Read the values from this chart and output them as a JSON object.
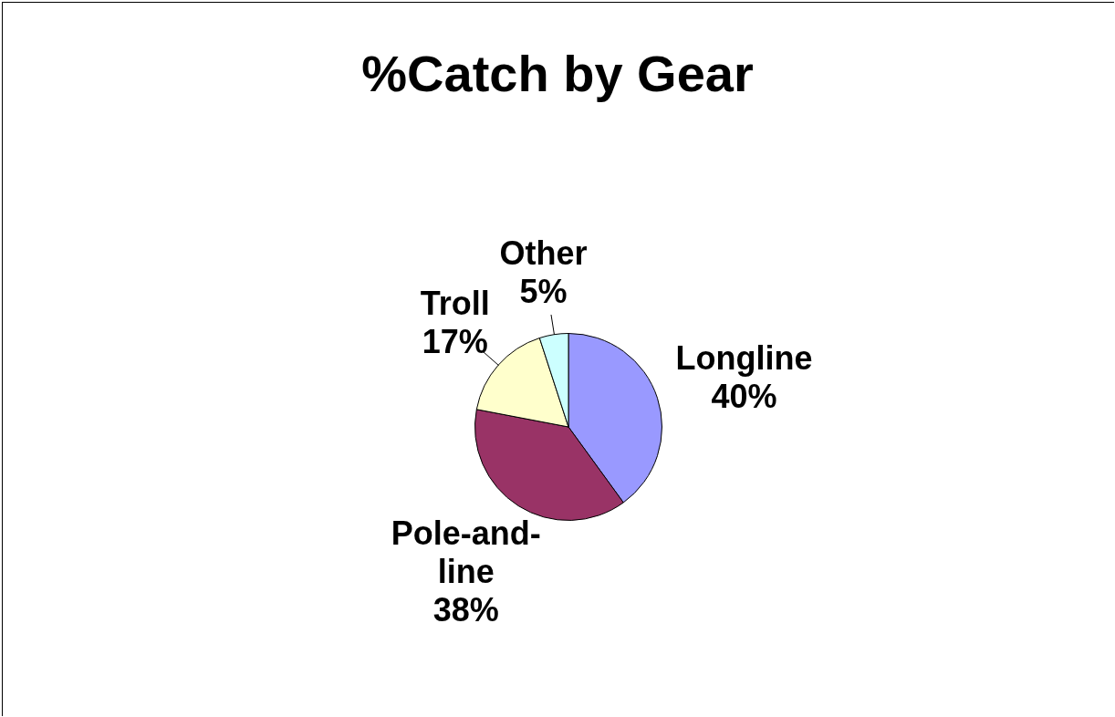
{
  "chart_data": {
    "type": "pie",
    "title": "%Catch by Gear",
    "categories": [
      "Longline",
      "Pole-and-line",
      "Troll",
      "Other"
    ],
    "values": [
      40,
      38,
      17,
      5
    ],
    "colors": [
      "#9999ff",
      "#993366",
      "#ffffcc",
      "#ccffff"
    ],
    "value_labels": [
      "40%",
      "38%",
      "17%",
      "5%"
    ],
    "legend": false
  }
}
